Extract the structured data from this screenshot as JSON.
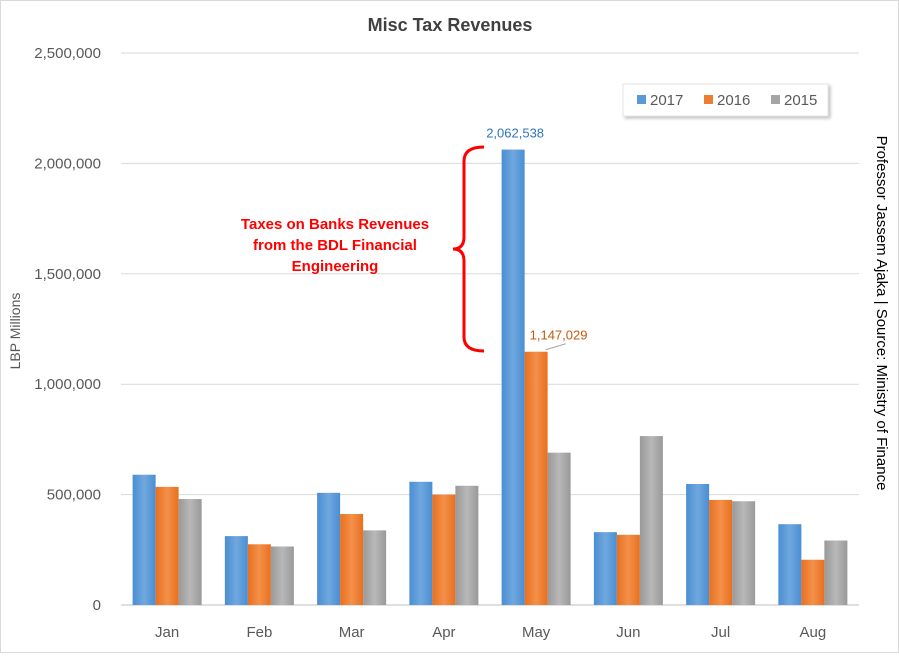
{
  "chart_data": {
    "type": "bar",
    "title": "Misc Tax Revenues",
    "xlabel": "",
    "ylabel": "LBP Millions",
    "ylim": [
      0,
      2500000
    ],
    "yticks": [
      0,
      500000,
      1000000,
      1500000,
      2000000,
      2500000
    ],
    "ytick_labels": [
      "0",
      "500,000",
      "1,000,000",
      "1,500,000",
      "2,000,000",
      "2,500,000"
    ],
    "categories": [
      "Jan",
      "Feb",
      "Mar",
      "Apr",
      "May",
      "Jun",
      "Jul",
      "Aug"
    ],
    "series": [
      {
        "name": "2017",
        "values": [
          590000,
          312000,
          508000,
          558000,
          2062538,
          330000,
          548000,
          366000
        ]
      },
      {
        "name": "2016",
        "values": [
          535000,
          275000,
          412000,
          500000,
          1147029,
          318000,
          476000,
          205000
        ]
      },
      {
        "name": "2015",
        "values": [
          480000,
          265000,
          338000,
          540000,
          690000,
          765000,
          470000,
          292000
        ]
      }
    ],
    "data_labels": [
      {
        "series": "2017",
        "category": "May",
        "text": "2,062,538"
      },
      {
        "series": "2016",
        "category": "May",
        "text": "1,147,029"
      }
    ],
    "annotation": "Taxes on Banks Revenues\nfrom the BDL Financial\nEngineering",
    "side_text": "Professor Jassem Ajaka | Source: Ministry of Finance",
    "legend_position": "top-right",
    "grid": true
  },
  "colors": {
    "2017": "#5b9bd5",
    "2016": "#ed7d31",
    "2015": "#a5a5a5",
    "annotation": "#ff0000",
    "label_2017": "#2e75b6",
    "label_2016": "#c55a11",
    "grid": "#d9d9d9",
    "axis_text": "#595959"
  }
}
